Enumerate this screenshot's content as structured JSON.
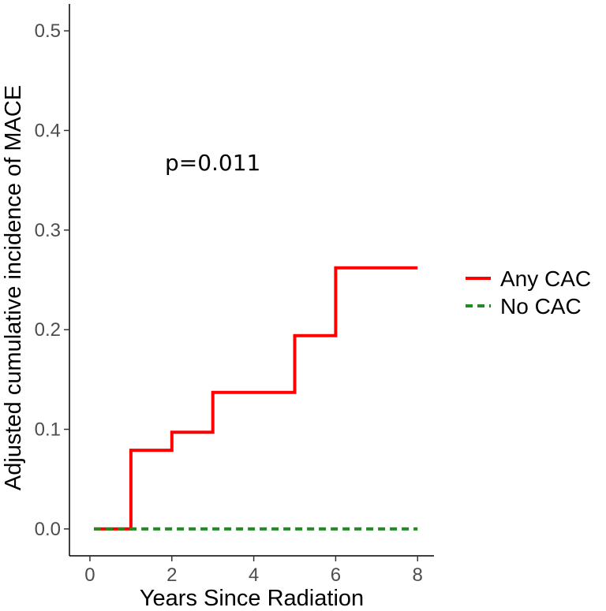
{
  "chart_data": {
    "type": "line",
    "step": true,
    "title": "",
    "xlabel": "Years Since Radiation",
    "ylabel": "Adjusted cumulative incidence of MACE",
    "xlim": [
      -0.5,
      8.4
    ],
    "ylim": [
      -0.027,
      0.527
    ],
    "x_ticks": [
      0,
      2,
      4,
      6,
      8
    ],
    "x_tick_labels": [
      "0",
      "2",
      "4",
      "6",
      "8"
    ],
    "y_ticks": [
      0.0,
      0.1,
      0.2,
      0.3,
      0.4,
      0.5
    ],
    "y_tick_labels": [
      "0.0",
      "0.1",
      "0.2",
      "0.3",
      "0.4",
      "0.5"
    ],
    "annotation": {
      "text": "p=0.011",
      "x": 3.0,
      "y": 0.36
    },
    "legend_position": "right",
    "series": [
      {
        "name": "Any CAC",
        "color": "#ff0000",
        "style": "solid",
        "x": [
          0.1,
          1.0,
          1.0,
          2.0,
          2.0,
          3.0,
          3.0,
          5.0,
          5.0,
          6.0,
          6.0,
          8.0
        ],
        "y": [
          0.0,
          0.0,
          0.079,
          0.079,
          0.097,
          0.097,
          0.137,
          0.137,
          0.194,
          0.194,
          0.262,
          0.262
        ]
      },
      {
        "name": "No CAC",
        "color": "#228b22",
        "style": "dashed",
        "x": [
          0.1,
          8.0
        ],
        "y": [
          0.0,
          0.0
        ]
      }
    ]
  }
}
